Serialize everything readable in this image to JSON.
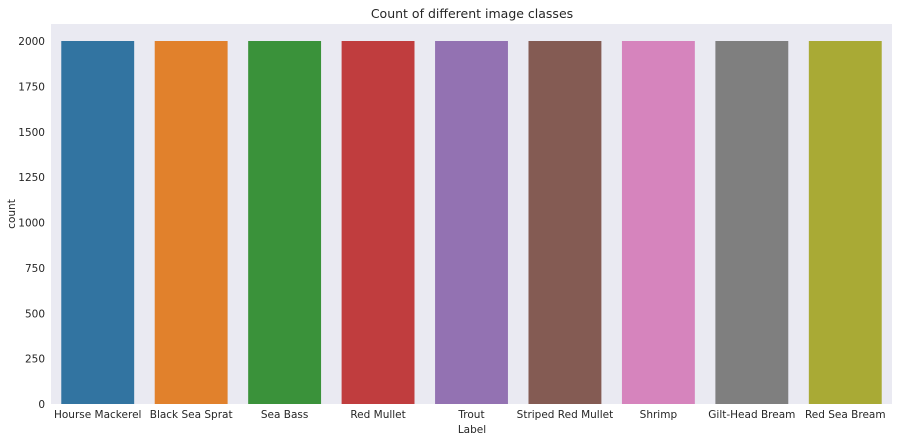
{
  "chart_data": {
    "type": "bar",
    "title": "Count of different image classes",
    "xlabel": "Label",
    "ylabel": "count",
    "categories": [
      "Hourse Mackerel",
      "Black Sea Sprat",
      "Sea Bass",
      "Red Mullet",
      "Trout",
      "Striped Red Mullet",
      "Shrimp",
      "Gilt-Head Bream",
      "Red Sea Bream"
    ],
    "values": [
      2000,
      2000,
      2000,
      2000,
      2000,
      2000,
      2000,
      2000,
      2000
    ],
    "colors": [
      "#3274a1",
      "#e1812c",
      "#3a923a",
      "#c03d3e",
      "#9372b2",
      "#845b53",
      "#d684bd",
      "#7f7f7f",
      "#a9aa35"
    ],
    "yticks": [
      0,
      250,
      500,
      750,
      1000,
      1250,
      1500,
      1750,
      2000
    ],
    "ylim": [
      0,
      2000
    ],
    "grid": false,
    "background": "#eaeaf2"
  }
}
